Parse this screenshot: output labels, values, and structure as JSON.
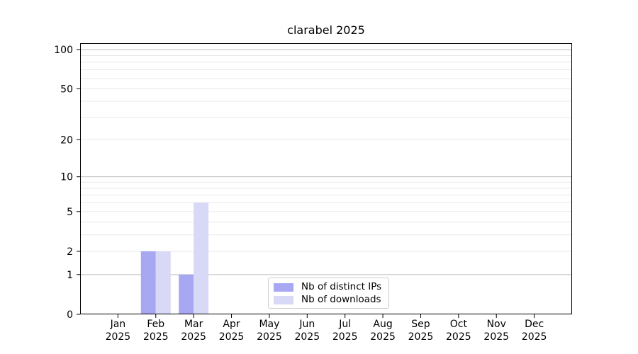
{
  "colors": {
    "background": "#ffffff",
    "axis": "#000000",
    "text": "#000000",
    "grid_major": "#bdbdbd",
    "grid_minor": "#e9e9e9",
    "legend_border": "#cccccc"
  },
  "chart_data": {
    "type": "bar",
    "title": "clarabel 2025",
    "categories": [
      "Jan",
      "Feb",
      "Mar",
      "Apr",
      "May",
      "Jun",
      "Jul",
      "Aug",
      "Sep",
      "Oct",
      "Nov",
      "Dec"
    ],
    "x_year_label": "2025",
    "y_scale": "log1p",
    "ylim": [
      0,
      112
    ],
    "y_ticks": [
      0,
      1,
      2,
      5,
      10,
      20,
      50,
      100
    ],
    "grid": {
      "major": [
        1,
        10,
        100
      ],
      "minor": [
        2,
        3,
        4,
        5,
        6,
        7,
        8,
        9,
        20,
        30,
        40,
        50,
        60,
        70,
        80,
        90
      ]
    },
    "legend_position": "lower center",
    "series": [
      {
        "name": "Nb of distinct IPs",
        "color": "#a8a8f2",
        "values": [
          0,
          2,
          1,
          0,
          0,
          0,
          0,
          0,
          0,
          0,
          0,
          0
        ]
      },
      {
        "name": "Nb of downloads",
        "color": "#d8d8f7",
        "values": [
          0,
          2,
          6,
          0,
          0,
          0,
          0,
          0,
          0,
          0,
          0,
          0
        ]
      }
    ]
  }
}
